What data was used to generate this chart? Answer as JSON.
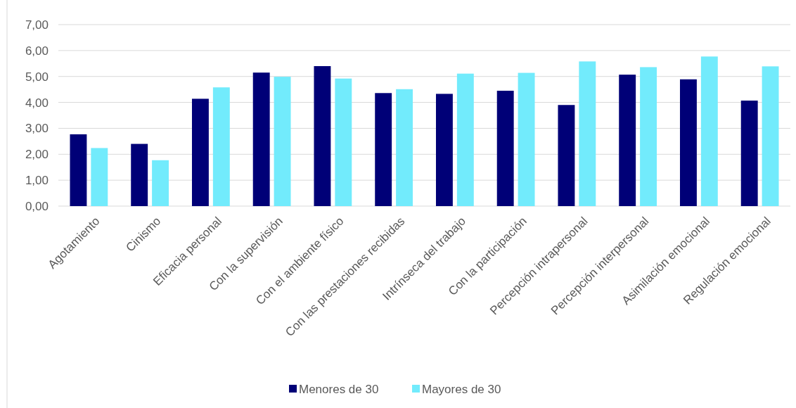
{
  "chart_data": {
    "type": "bar",
    "categories": [
      "Agotamiento",
      "Cinismo",
      "Eficacia personal",
      "Con la supervisión",
      "Con el ambiente físico",
      "Con las prestaciones recibidas",
      "Intrínseca del trabajo",
      "Con la participación",
      "Percepción intrapersonal",
      "Percepción interpersonal",
      "Asimilación emocional",
      "Regulación emocional"
    ],
    "series": [
      {
        "name": "Menores de 30",
        "color": "#000077",
        "values": [
          2.77,
          2.4,
          4.14,
          5.15,
          5.4,
          4.36,
          4.33,
          4.45,
          3.9,
          5.07,
          4.89,
          4.07
        ]
      },
      {
        "name": "Mayores de 30",
        "color": "#72ebfc",
        "values": [
          2.24,
          1.77,
          4.58,
          4.99,
          4.92,
          4.51,
          5.11,
          5.14,
          5.58,
          5.36,
          5.77,
          5.39
        ]
      }
    ],
    "ylim": [
      0,
      7
    ],
    "yticks": [
      {
        "value": 0,
        "label": "0,00"
      },
      {
        "value": 1,
        "label": "1,00"
      },
      {
        "value": 2,
        "label": "2,00"
      },
      {
        "value": 3,
        "label": "3,00"
      },
      {
        "value": 4,
        "label": "4,00"
      },
      {
        "value": 5,
        "label": "5,00"
      },
      {
        "value": 6,
        "label": "6,00"
      },
      {
        "value": 7,
        "label": "7,00"
      }
    ],
    "grid": "y",
    "legend": "bottom"
  }
}
